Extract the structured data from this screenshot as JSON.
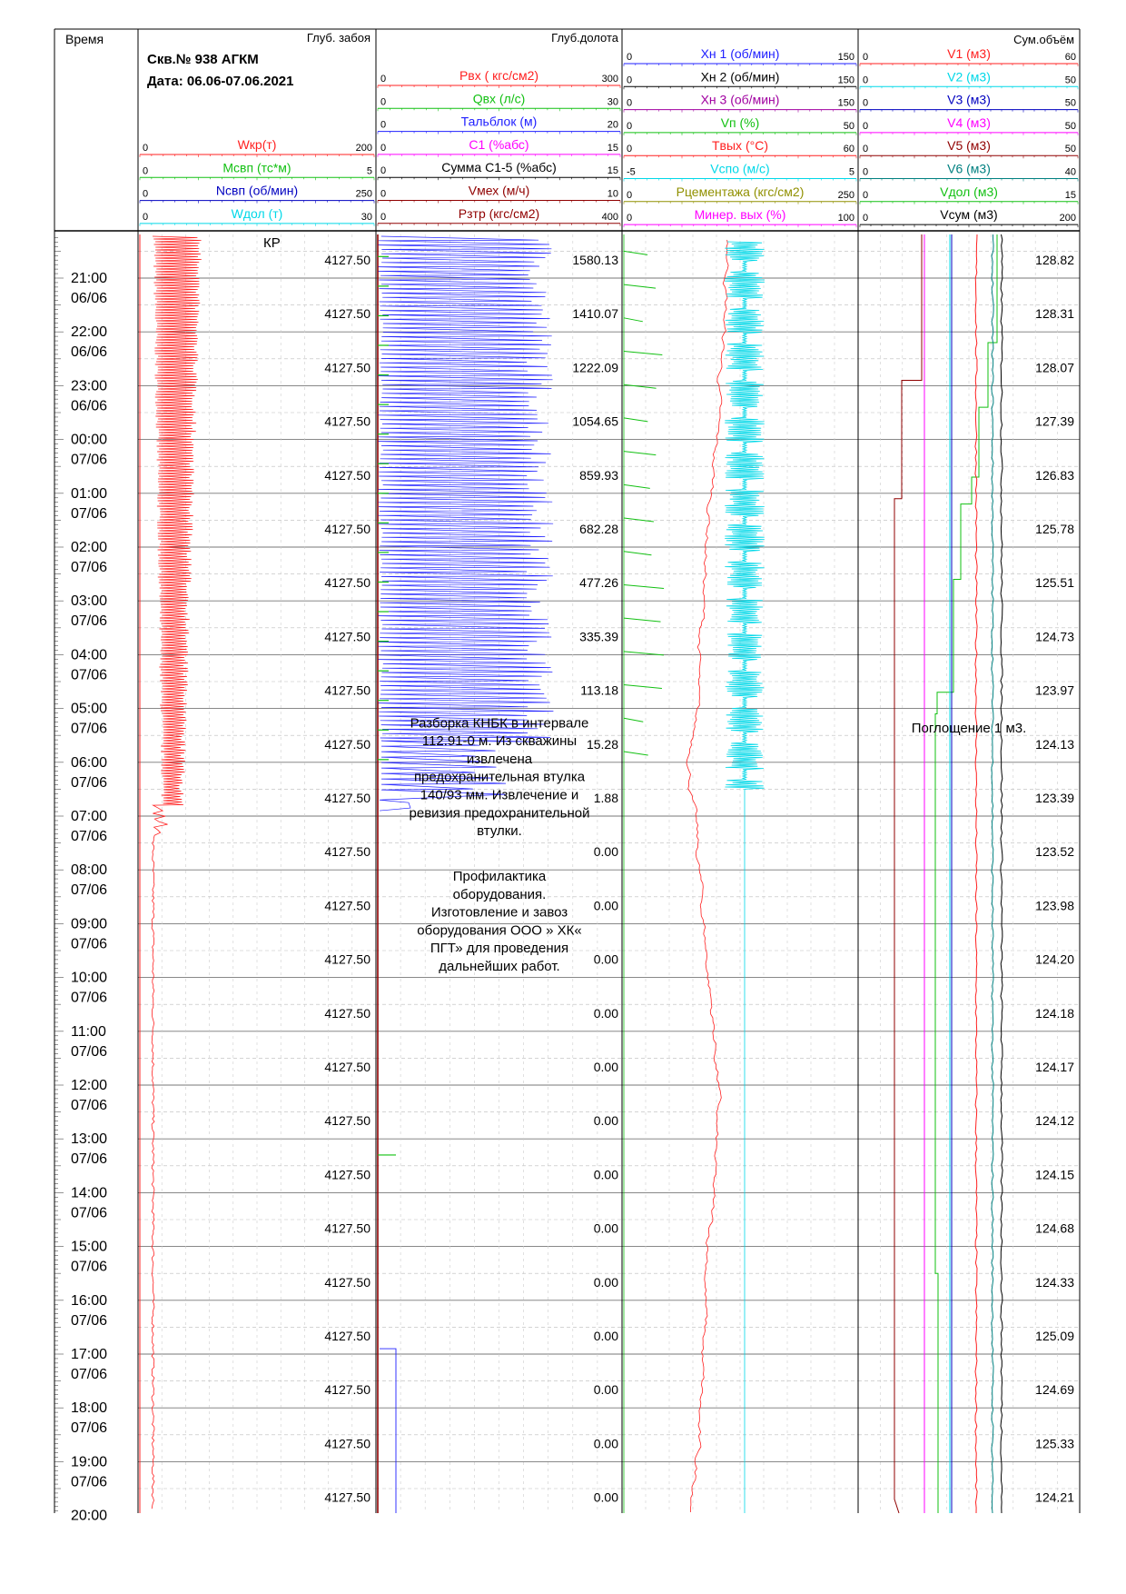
{
  "header": {
    "time_col": "Время",
    "depth_col": "Глуб. забоя",
    "bit_depth_col": "Глуб.долота",
    "sum_vol_col": "Сум.объём",
    "well": "Скв.№ 938 АГКМ",
    "date": "Дата: 06.06-07.06.2021"
  },
  "colors": {
    "red": "#ff2020",
    "green": "#12c012",
    "blue": "#2020ff",
    "cyan": "#00d8e8",
    "magenta": "#ff00ff",
    "black": "#000000",
    "darkblue": "#0000c0",
    "purple": "#a000a0",
    "maroon": "#900000",
    "olive": "#909000",
    "teal": "#008080"
  },
  "track1_params": [
    {
      "name": "Wкр(т)",
      "min": "0",
      "max": "200",
      "color": "red"
    },
    {
      "name": "Mсвп (тс*м)",
      "min": "0",
      "max": "5",
      "color": "green"
    },
    {
      "name": "Nсвп (об/мин)",
      "min": "0",
      "max": "250",
      "color": "darkblue"
    },
    {
      "name": "Wдол (т)",
      "min": "0",
      "max": "30",
      "color": "cyan"
    }
  ],
  "track2_params": [
    {
      "name": "Pвх ( кгс/см2)",
      "min": "0",
      "max": "300",
      "color": "red"
    },
    {
      "name": "Qвх (л/с)",
      "min": "0",
      "max": "30",
      "color": "green"
    },
    {
      "name": "Тальблок (м)",
      "min": "0",
      "max": "20",
      "color": "blue"
    },
    {
      "name": "C1 (%абс)",
      "min": "0",
      "max": "15",
      "color": "magenta"
    },
    {
      "name": "Сумма C1-5 (%абс)",
      "min": "0",
      "max": "15",
      "color": "black"
    },
    {
      "name": "Vмех (м/ч)",
      "min": "0",
      "max": "10",
      "color": "maroon"
    },
    {
      "name": "Pзтр (кгс/см2)",
      "min": "0",
      "max": "400",
      "color": "maroon"
    }
  ],
  "track3_params": [
    {
      "name": "Xн 1 (об/мин)",
      "min": "0",
      "max": "150",
      "color": "blue"
    },
    {
      "name": "Xн 2 (об/мин)",
      "min": "0",
      "max": "150",
      "color": "black"
    },
    {
      "name": "Xн 3 (об/мин)",
      "min": "0",
      "max": "150",
      "color": "purple"
    },
    {
      "name": "Vп (%)",
      "min": "0",
      "max": "50",
      "color": "green"
    },
    {
      "name": "Tвых (°C)",
      "min": "0",
      "max": "60",
      "color": "red"
    },
    {
      "name": "Vспо (м/с)",
      "min": "-5",
      "max": "5",
      "color": "cyan"
    },
    {
      "name": "Pцементажа (кгс/см2)",
      "min": "0",
      "max": "250",
      "color": "olive"
    },
    {
      "name": "Минер. вых (%)",
      "min": "0",
      "max": "100",
      "color": "magenta"
    }
  ],
  "track4_params": [
    {
      "name": "V1 (м3)",
      "min": "0",
      "max": "60",
      "color": "red"
    },
    {
      "name": "V2 (м3)",
      "min": "0",
      "max": "50",
      "color": "cyan"
    },
    {
      "name": "V3 (м3)",
      "min": "0",
      "max": "50",
      "color": "darkblue"
    },
    {
      "name": "V4 (м3)",
      "min": "0",
      "max": "50",
      "color": "magenta"
    },
    {
      "name": "V5 (м3)",
      "min": "0",
      "max": "50",
      "color": "maroon"
    },
    {
      "name": "V6 (м3)",
      "min": "0",
      "max": "40",
      "color": "teal"
    },
    {
      "name": "Vдол (м3)",
      "min": "0",
      "max": "15",
      "color": "green"
    },
    {
      "name": "Vсум (м3)",
      "min": "0",
      "max": "200",
      "color": "black"
    }
  ],
  "time_labels": [
    [
      "21:00",
      "06/06"
    ],
    [
      "22:00",
      "06/06"
    ],
    [
      "23:00",
      "06/06"
    ],
    [
      "00:00",
      "07/06"
    ],
    [
      "01:00",
      "07/06"
    ],
    [
      "02:00",
      "07/06"
    ],
    [
      "03:00",
      "07/06"
    ],
    [
      "04:00",
      "07/06"
    ],
    [
      "05:00",
      "07/06"
    ],
    [
      "06:00",
      "07/06"
    ],
    [
      "07:00",
      "07/06"
    ],
    [
      "08:00",
      "07/06"
    ],
    [
      "09:00",
      "07/06"
    ],
    [
      "10:00",
      "07/06"
    ],
    [
      "11:00",
      "07/06"
    ],
    [
      "12:00",
      "07/06"
    ],
    [
      "13:00",
      "07/06"
    ],
    [
      "14:00",
      "07/06"
    ],
    [
      "15:00",
      "07/06"
    ],
    [
      "16:00",
      "07/06"
    ],
    [
      "17:00",
      "07/06"
    ],
    [
      "18:00",
      "07/06"
    ],
    [
      "19:00",
      "07/06"
    ],
    [
      "20:00",
      ""
    ]
  ],
  "depth_values": [
    "4127.50",
    "4127.50",
    "4127.50",
    "4127.50",
    "4127.50",
    "4127.50",
    "4127.50",
    "4127.50",
    "4127.50",
    "4127.50",
    "4127.50",
    "4127.50",
    "4127.50",
    "4127.50",
    "4127.50",
    "4127.50",
    "4127.50",
    "4127.50",
    "4127.50",
    "4127.50",
    "4127.50",
    "4127.50",
    "4127.50",
    "4127.50"
  ],
  "bit_depth_values": [
    "1580.13",
    "1410.07",
    "1222.09",
    "1054.65",
    "859.93",
    "682.28",
    "477.26",
    "335.39",
    "113.18",
    "15.28",
    "1.88",
    "0.00",
    "0.00",
    "0.00",
    "0.00",
    "0.00",
    "0.00",
    "0.00",
    "0.00",
    "0.00",
    "0.00",
    "0.00",
    "0.00",
    "0.00"
  ],
  "sum_volume_values": [
    "128.82",
    "128.31",
    "128.07",
    "127.39",
    "126.83",
    "125.78",
    "125.51",
    "124.73",
    "123.97",
    "124.13",
    "123.39",
    "123.52",
    "123.98",
    "124.20",
    "124.18",
    "124.17",
    "124.12",
    "124.15",
    "124.68",
    "124.33",
    "125.09",
    "124.69",
    "125.33",
    "124.21"
  ],
  "operation_code": "КР",
  "comment1": [
    "Разборка КНБК в интервале",
    "112.91-0 м. Из скважины",
    "извлечена",
    "предохранительная втулка",
    "140/93 мм. Извлечение и",
    "ревизия предохранительной",
    "втулки."
  ],
  "comment2": [
    "Профилактика",
    "оборудования.",
    "Изготовление и завоз",
    "оборудования ООО » ХК«",
    "ПГТ» для проведения",
    "дальнейших работ."
  ],
  "comment3": "Поглощение 1 м3."
}
